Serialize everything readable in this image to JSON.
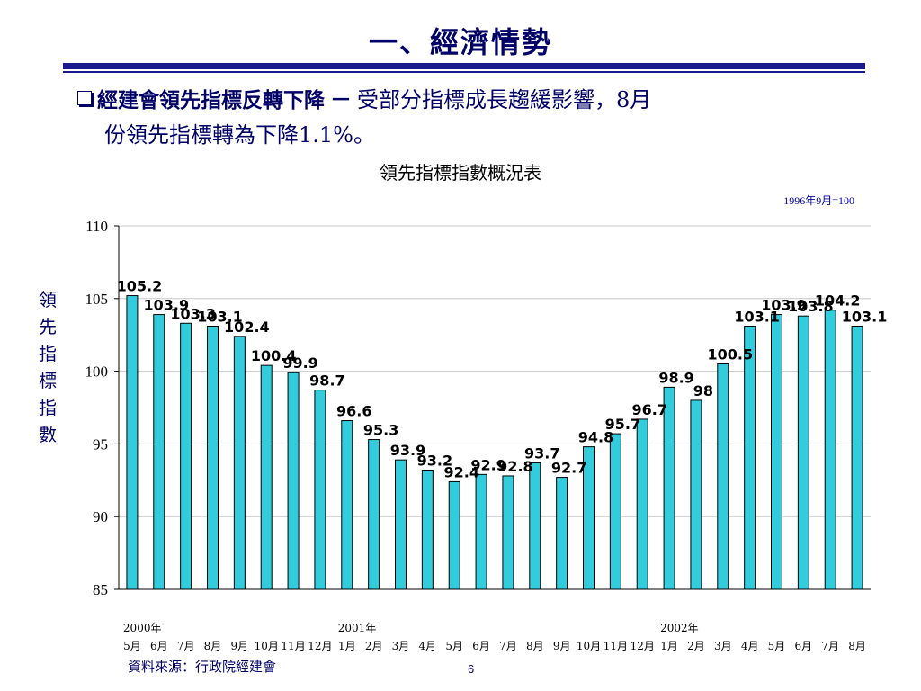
{
  "slide": {
    "title": "一、經濟情勢",
    "bullet_bold": "經建會領先指標反轉下降",
    "bullet_dash": "－",
    "bullet_rest_line1": "受部分指標成長趨緩影響，8月",
    "bullet_line2": "份領先指標轉為下降1.1%。",
    "source": "資料來源：行政院經建會",
    "page_number": "6"
  },
  "chart_data": {
    "type": "bar",
    "title": "領先指標指數概況表",
    "base_note": "1996年9月=100",
    "ylabel_chars": [
      "領",
      "先",
      "指",
      "標",
      "指",
      "數"
    ],
    "ylim": [
      85,
      110
    ],
    "yticks": [
      85,
      90,
      95,
      100,
      105,
      110
    ],
    "bar_color": "#33ccdd",
    "categories": [
      "5月",
      "6月",
      "7月",
      "8月",
      "9月",
      "10月",
      "11月",
      "12月",
      "1月",
      "2月",
      "3月",
      "4月",
      "5月",
      "6月",
      "7月",
      "8月",
      "9月",
      "10月",
      "11月",
      "12月",
      "1月",
      "2月",
      "3月",
      "4月",
      "5月",
      "6月",
      "7月",
      "8月"
    ],
    "values": [
      105.2,
      103.9,
      103.3,
      103.1,
      102.4,
      100.4,
      99.9,
      98.7,
      96.6,
      95.3,
      93.9,
      93.2,
      92.4,
      92.9,
      92.8,
      93.7,
      92.7,
      94.8,
      95.7,
      96.7,
      98.9,
      98.0,
      100.5,
      103.1,
      103.9,
      103.8,
      104.2,
      103.1
    ],
    "labels": [
      "105.2",
      "103.9",
      "103.3",
      "103.1",
      "102.4",
      "100.4",
      "99.9",
      "98.7",
      "96.6",
      "95.3",
      "93.9",
      "93.2",
      "92.4",
      "92.9",
      "92.8",
      "93.7",
      "92.7",
      "94.8",
      "95.7",
      "96.7",
      "98.9",
      "98",
      "100.5",
      "103.1",
      "103.9",
      "103.8",
      "104.2",
      "103.1"
    ],
    "year_labels": [
      {
        "text": "2000年",
        "index": 0
      },
      {
        "text": "2001年",
        "index": 8
      },
      {
        "text": "2002年",
        "index": 20
      }
    ],
    "grid": true,
    "legend": "none"
  }
}
